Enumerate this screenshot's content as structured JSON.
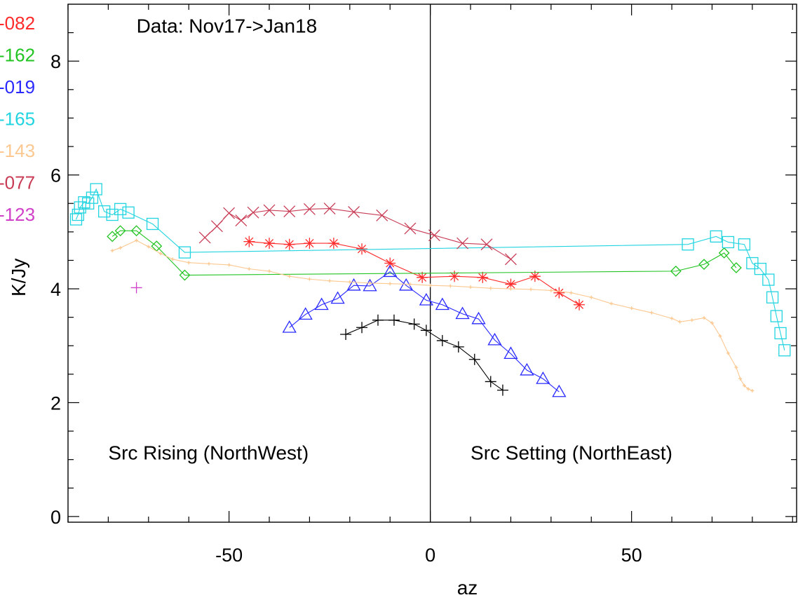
{
  "chart_data": {
    "type": "line",
    "title": "",
    "xlabel": "az",
    "ylabel": "K/Jy",
    "xlim": [
      -90,
      91
    ],
    "ylim": [
      -0.1,
      9.0
    ],
    "xticks": [
      -50,
      0,
      50
    ],
    "xtick_labels": [
      "-50",
      "0",
      "50"
    ],
    "yticks": [
      0,
      2,
      4,
      6,
      8
    ],
    "ytick_labels": [
      "0",
      "2",
      "4",
      "6",
      "8"
    ],
    "grid": false,
    "legend_position": "left",
    "annotations": [
      {
        "text": "Data: Nov17->Jan18",
        "x": -73,
        "y": 8.5
      },
      {
        "text": "Src Rising (NorthWest)",
        "x": -80,
        "y": 1.0
      },
      {
        "text": "Src Setting (NorthEast)",
        "x": 10,
        "y": 1.0
      }
    ],
    "vertical_line_x": 0,
    "series": [
      {
        "name": "-082",
        "color": "#ff2a2a",
        "marker": "asterisk",
        "x": [
          -45,
          -40,
          -35,
          -30,
          -24,
          -17,
          -10,
          -2,
          6,
          13,
          20,
          26,
          32,
          37
        ],
        "y": [
          4.83,
          4.8,
          4.78,
          4.8,
          4.8,
          4.7,
          4.45,
          4.2,
          4.22,
          4.2,
          4.08,
          4.22,
          3.93,
          3.72
        ]
      },
      {
        "name": "-162",
        "color": "#22c422",
        "marker": "diamond",
        "x": [
          -79,
          -77,
          -73,
          -68,
          -61,
          61,
          68,
          73,
          76
        ],
        "y": [
          4.92,
          5.02,
          5.02,
          4.75,
          4.24,
          4.31,
          4.43,
          4.63,
          4.37
        ]
      },
      {
        "name": "-019",
        "color": "#2a2aff",
        "marker": "triangle",
        "x": [
          -35,
          -31,
          -27,
          -23,
          -19,
          -15,
          -10,
          -6,
          -1,
          3,
          8,
          12,
          16,
          20,
          24,
          28,
          32
        ],
        "y": [
          3.32,
          3.55,
          3.72,
          3.83,
          4.06,
          4.05,
          4.3,
          4.06,
          3.8,
          3.72,
          3.56,
          3.47,
          3.1,
          2.86,
          2.57,
          2.42,
          2.19
        ]
      },
      {
        "name": "-165",
        "color": "#22d4e0",
        "marker": "square",
        "x": [
          -88,
          -87.5,
          -87,
          -86,
          -85,
          -84,
          -83,
          -81,
          -79,
          -77,
          -75,
          -69,
          -61,
          64,
          71,
          74,
          78,
          80,
          82,
          84,
          85,
          86,
          87,
          88
        ],
        "y": [
          5.22,
          5.3,
          5.43,
          5.52,
          5.5,
          5.6,
          5.75,
          5.36,
          5.3,
          5.4,
          5.34,
          5.14,
          4.64,
          4.78,
          4.92,
          4.82,
          4.78,
          4.45,
          4.35,
          4.16,
          3.85,
          3.52,
          3.22,
          2.92
        ]
      },
      {
        "name": "-143",
        "color": "#fcc890",
        "marker": "plus-small",
        "x": [
          -79,
          -77,
          -73,
          -70,
          -67,
          -64,
          -60,
          -55,
          -50,
          -45,
          -40,
          -35,
          -30,
          -25,
          -20,
          -15,
          -10,
          -5,
          0,
          5,
          10,
          15,
          20,
          25,
          30,
          35,
          40,
          45,
          50,
          55,
          60,
          62,
          65,
          68,
          70,
          72,
          74,
          76,
          77,
          78,
          79,
          80
        ],
        "y": [
          4.67,
          4.72,
          4.85,
          4.74,
          4.62,
          4.52,
          4.46,
          4.44,
          4.42,
          4.35,
          4.31,
          4.22,
          4.17,
          4.14,
          4.12,
          4.1,
          4.09,
          4.08,
          4.06,
          4.05,
          4.03,
          4.01,
          4.0,
          3.99,
          3.97,
          3.93,
          3.85,
          3.74,
          3.66,
          3.58,
          3.48,
          3.42,
          3.45,
          3.49,
          3.4,
          3.17,
          2.87,
          2.62,
          2.42,
          2.3,
          2.24,
          2.21
        ]
      },
      {
        "name": "-077",
        "color": "#c83c55",
        "marker": "cross",
        "x": [
          -56,
          -53,
          -50,
          -47,
          -44,
          -40,
          -35,
          -30,
          -25,
          -19,
          -12,
          -5,
          1,
          8,
          14,
          20
        ],
        "y": [
          4.9,
          5.1,
          5.33,
          5.2,
          5.34,
          5.38,
          5.36,
          5.4,
          5.41,
          5.35,
          5.29,
          5.06,
          4.94,
          4.8,
          4.78,
          4.52
        ]
      },
      {
        "name": "-123",
        "color": "#d040c8",
        "marker": "plus",
        "x": [
          -73
        ],
        "y": [
          4.02
        ]
      },
      {
        "name": "",
        "color": "#000000",
        "marker": "plus",
        "x": [
          -21,
          -17,
          -13,
          -9,
          -4,
          -1,
          3,
          7,
          11,
          15,
          18
        ],
        "y": [
          3.2,
          3.32,
          3.45,
          3.45,
          3.38,
          3.27,
          3.09,
          2.98,
          2.76,
          2.37,
          2.22
        ]
      }
    ]
  }
}
